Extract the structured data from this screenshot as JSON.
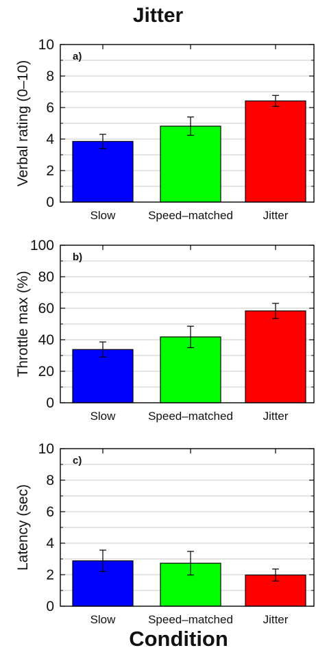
{
  "title": "Jitter",
  "xlabel": "Condition",
  "chart_data": [
    {
      "type": "bar",
      "panel_label": "a)",
      "categories": [
        "Slow",
        "Speed–matched",
        "Jitter"
      ],
      "values": [
        3.85,
        4.82,
        6.42
      ],
      "error": [
        0.45,
        0.58,
        0.35
      ],
      "colors": [
        "#0000ff",
        "#00ff00",
        "#ff0000"
      ],
      "ylabel": "Verbal rating (0–10)",
      "ylim": [
        0,
        10
      ],
      "yticks": [
        "0",
        "2",
        "4",
        "6",
        "8",
        "10"
      ],
      "grid": true
    },
    {
      "type": "bar",
      "panel_label": "b)",
      "categories": [
        "Slow",
        "Speed–matched",
        "Jitter"
      ],
      "values": [
        33.8,
        41.8,
        58.3
      ],
      "error": [
        4.8,
        6.8,
        4.8
      ],
      "colors": [
        "#0000ff",
        "#00ff00",
        "#ff0000"
      ],
      "ylabel": "Throttle max (%)",
      "ylim": [
        0,
        100
      ],
      "yticks": [
        "0",
        "20",
        "40",
        "60",
        "80",
        "100"
      ],
      "grid": true
    },
    {
      "type": "bar",
      "panel_label": "c)",
      "categories": [
        "Slow",
        "Speed–matched",
        "Jitter"
      ],
      "values": [
        2.88,
        2.73,
        1.98
      ],
      "error": [
        0.68,
        0.75,
        0.38
      ],
      "colors": [
        "#0000ff",
        "#00ff00",
        "#ff0000"
      ],
      "ylabel": "Latency (sec)",
      "ylim": [
        0,
        10
      ],
      "yticks": [
        "0",
        "2",
        "4",
        "6",
        "8",
        "10"
      ],
      "grid": true
    }
  ]
}
